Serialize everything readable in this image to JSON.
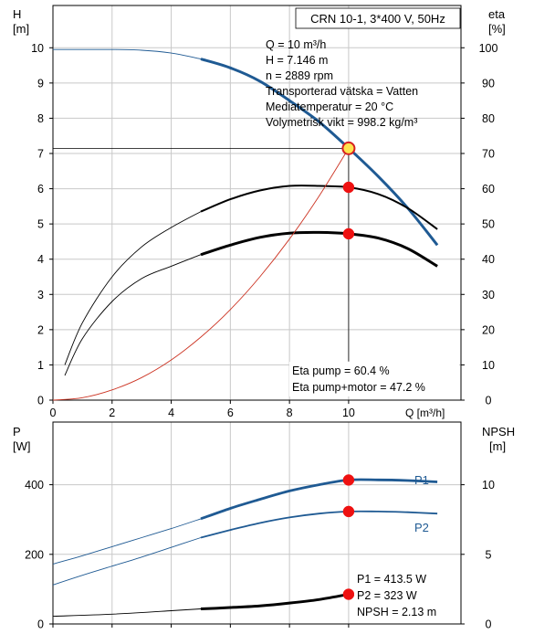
{
  "chart_data": [
    {
      "type": "line",
      "id": "head-efficiency",
      "title": "CRN 10-1, 3*400 V, 50Hz",
      "xlabel": "Q [m³/h]",
      "ylabel_left": [
        "H",
        "[m]"
      ],
      "ylabel_right": [
        "eta",
        "[%]"
      ],
      "xlim": [
        0,
        13.8
      ],
      "ylim_left": [
        0,
        11.2
      ],
      "ylim_right": [
        0,
        112
      ],
      "x_ticks": [
        0,
        2,
        4,
        6,
        8,
        10
      ],
      "y_ticks_left": [
        0,
        1,
        2,
        3,
        4,
        5,
        6,
        7,
        8,
        9,
        10
      ],
      "y_ticks_right": [
        0,
        10,
        20,
        30,
        40,
        50,
        60,
        70,
        80,
        90,
        100
      ],
      "grid": true,
      "series": [
        {
          "id": "head",
          "axis": "left",
          "color": "#1f5a93",
          "x": [
            0,
            1,
            2,
            3,
            4,
            5,
            6,
            7,
            8,
            9,
            10,
            11,
            12,
            13
          ],
          "y": [
            9.95,
            9.95,
            9.95,
            9.93,
            9.85,
            9.68,
            9.43,
            9.05,
            8.5,
            7.9,
            7.15,
            6.35,
            5.45,
            4.4
          ],
          "thick_from": 5
        },
        {
          "id": "eta-pump",
          "axis": "right",
          "color": "#000000",
          "x": [
            0.4,
            1,
            2,
            3,
            4,
            5,
            6,
            7,
            8,
            9,
            10,
            11,
            12,
            13
          ],
          "y": [
            10,
            22,
            35,
            43.5,
            49,
            53.5,
            57,
            59.5,
            60.8,
            60.8,
            60.4,
            58.5,
            54.5,
            48.5
          ],
          "thick_from": 5
        },
        {
          "id": "eta-pump-motor",
          "axis": "right",
          "color": "#000000",
          "x": [
            0.4,
            1,
            2,
            3,
            4,
            5,
            6,
            7,
            8,
            9,
            10,
            11,
            12,
            13
          ],
          "y": [
            7,
            17.5,
            28,
            34.5,
            38,
            41.3,
            44,
            46.2,
            47.4,
            47.6,
            47.2,
            46,
            43,
            38
          ],
          "thick_from": 5
        },
        {
          "id": "system-curve",
          "axis": "left",
          "color": "#cc3322",
          "x": [
            0,
            1,
            2,
            3,
            4,
            5,
            6,
            7,
            8,
            9,
            10
          ],
          "y": [
            0,
            0.07,
            0.29,
            0.64,
            1.14,
            1.79,
            2.57,
            3.5,
            4.57,
            5.79,
            7.146
          ]
        }
      ],
      "markers": [
        {
          "axis": "left",
          "x": 10,
          "y": 7.146,
          "style": "duty-point"
        },
        {
          "axis": "right",
          "x": 10,
          "y": 60.4,
          "style": "dot"
        },
        {
          "axis": "right",
          "x": 10,
          "y": 47.2,
          "style": "dot"
        }
      ],
      "info_lines": [
        "Q = 10 m³/h",
        "H = 7.146 m",
        "n = 2889 rpm",
        "Transporterad vätska = Vatten",
        "Mediatemperatur = 20 °C",
        "Volymetrisk vikt = 998.2 kg/m³"
      ],
      "eta_lines": [
        "Eta pump = 60.4 %",
        "Eta pump+motor = 47.2 %"
      ]
    },
    {
      "type": "line",
      "id": "power-npsh",
      "ylabel_left": [
        "P",
        "[W]"
      ],
      "ylabel_right": [
        "NPSH",
        "[m]"
      ],
      "xlim": [
        0,
        13.8
      ],
      "ylim_left": [
        0,
        580
      ],
      "ylim_right": [
        0,
        14.5
      ],
      "y_ticks_left": [
        0,
        200,
        400
      ],
      "y_ticks_right": [
        0,
        5,
        10
      ],
      "grid": true,
      "series": [
        {
          "id": "p1",
          "name": "P1",
          "axis": "left",
          "color": "#1f5a93",
          "x": [
            0,
            1,
            2,
            3,
            4,
            5,
            6,
            7,
            8,
            9,
            10,
            11,
            12,
            13
          ],
          "y": [
            172,
            196,
            222,
            248,
            274,
            302,
            332,
            358,
            382,
            400,
            413.5,
            414,
            412,
            408
          ],
          "thick_from": 5
        },
        {
          "id": "p2",
          "name": "P2",
          "axis": "left",
          "color": "#1f5a93",
          "x": [
            0,
            1,
            2,
            3,
            4,
            5,
            6,
            7,
            8,
            9,
            10,
            11,
            12,
            13
          ],
          "y": [
            112,
            140,
            166,
            192,
            220,
            248,
            270,
            290,
            306,
            317,
            323,
            323,
            321,
            317
          ],
          "thick_from": 5
        },
        {
          "id": "npsh",
          "axis": "right",
          "color": "#000000",
          "x": [
            0,
            2,
            4,
            5,
            6,
            7,
            8,
            9,
            10
          ],
          "y": [
            0.55,
            0.7,
            0.95,
            1.08,
            1.18,
            1.3,
            1.5,
            1.75,
            2.13
          ],
          "thick_from": 5
        }
      ],
      "markers": [
        {
          "axis": "left",
          "x": 10,
          "y": 413.5,
          "style": "dot"
        },
        {
          "axis": "left",
          "x": 10,
          "y": 323,
          "style": "dot"
        },
        {
          "axis": "right",
          "x": 10,
          "y": 2.13,
          "style": "dot"
        }
      ],
      "info_lines": [
        "P1 = 413.5 W",
        "P2 = 323 W",
        "NPSH = 2.13 m"
      ]
    }
  ]
}
